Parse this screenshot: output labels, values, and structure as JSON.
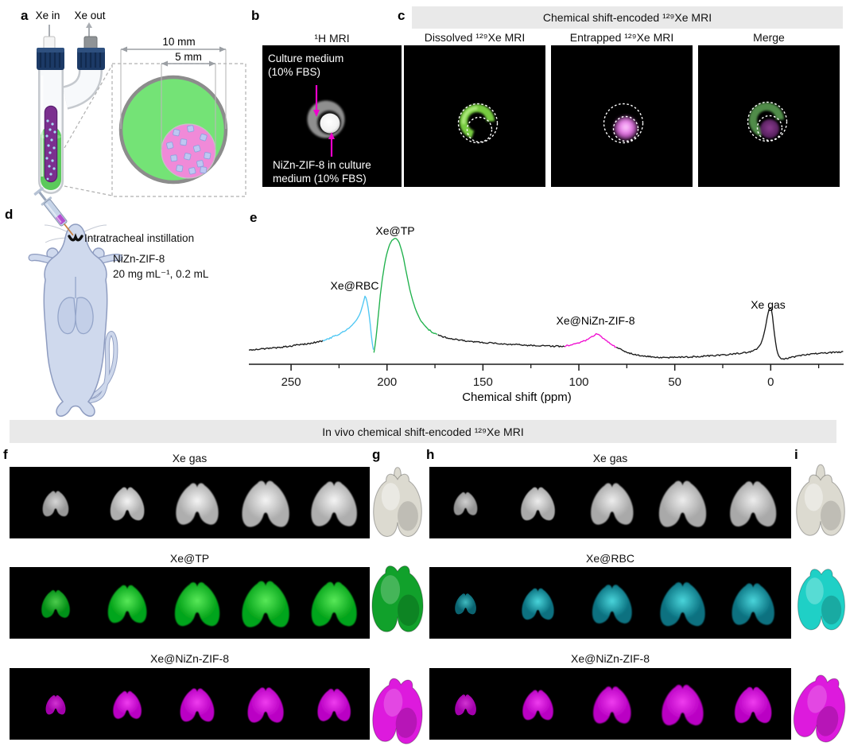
{
  "panel_a": {
    "letter": "a",
    "xe_in": "Xe in",
    "xe_out": "Xe out",
    "dim_outer": "10 mm",
    "dim_inner": "5 mm"
  },
  "panel_b": {
    "letter": "b",
    "title": "¹H MRI",
    "label_top_1": "Culture medium",
    "label_top_2": "(10% FBS)",
    "label_bottom_1": "NiZn-ZIF-8 in culture",
    "label_bottom_2": "medium (10% FBS)"
  },
  "panel_c": {
    "letter": "c",
    "header": "Chemical shift-encoded ¹²⁹Xe MRI",
    "col_1": "Dissolved ¹²⁹Xe MRI",
    "col_2": "Entrapped ¹²⁹Xe MRI",
    "col_3": "Merge"
  },
  "panel_d": {
    "letter": "d",
    "procedure": "Intratracheal instillation",
    "agent": "NiZn-ZIF-8",
    "dose": "20 mg mL⁻¹, 0.2 mL"
  },
  "panel_e": {
    "letter": "e"
  },
  "chart_data": {
    "type": "line",
    "title": "",
    "xlabel": "Chemical shift (ppm)",
    "ylabel": "",
    "x_axis_reversed": true,
    "x_range_ppm": [
      272,
      -38
    ],
    "x_major_ticks": [
      250,
      200,
      150,
      100,
      50,
      0
    ],
    "x_minor_ticks": [
      225,
      175,
      125,
      75,
      25,
      -25
    ],
    "grid": false,
    "peaks": [
      {
        "label": "Xe@RBC",
        "ppm": 211.5,
        "rel_height": 0.48,
        "color": "#4fc7f3"
      },
      {
        "label": "Xe@TP",
        "ppm": 195.5,
        "rel_height": 1.0,
        "color": "#1fb14c"
      },
      {
        "label": "Xe@NiZn-ZIF-8",
        "ppm": 91,
        "rel_height": 0.13,
        "color": "#f00fd0"
      },
      {
        "label": "Xe gas",
        "ppm": 0,
        "rel_height": 0.37,
        "color": "#1a1a1a"
      }
    ],
    "segments_ppm": [
      [
        272,
        233.5,
        "#1a1a1a"
      ],
      [
        233.5,
        206.8,
        "#4fc7f3"
      ],
      [
        206.8,
        173.5,
        "#1fb14c"
      ],
      [
        173.5,
        107.5,
        "#1a1a1a"
      ],
      [
        107.5,
        80.5,
        "#f00fd0"
      ],
      [
        80.5,
        -38,
        "#1a1a1a"
      ]
    ],
    "profile_anchors": [
      [
        272,
        -0.022
      ],
      [
        266,
        -0.015
      ],
      [
        260,
        -0.005
      ],
      [
        254,
        0.005
      ],
      [
        248,
        0.02
      ],
      [
        243,
        0.03
      ],
      [
        238,
        0.045
      ],
      [
        234,
        0.06
      ],
      [
        230,
        0.085
      ],
      [
        226,
        0.115
      ],
      [
        222,
        0.15
      ],
      [
        219,
        0.19
      ],
      [
        216,
        0.25
      ],
      [
        214,
        0.31
      ],
      [
        212.5,
        0.4
      ],
      [
        211.5,
        0.475
      ],
      [
        210.6,
        0.44
      ],
      [
        209.8,
        0.36
      ],
      [
        209,
        0.26
      ],
      [
        208.2,
        0.12
      ],
      [
        207.4,
        0.0
      ],
      [
        206.8,
        -0.042
      ],
      [
        206.2,
        0.02
      ],
      [
        205.4,
        0.14
      ],
      [
        204.5,
        0.3
      ],
      [
        203.5,
        0.48
      ],
      [
        202.5,
        0.62
      ],
      [
        201.5,
        0.74
      ],
      [
        200.5,
        0.83
      ],
      [
        199.5,
        0.9
      ],
      [
        198.5,
        0.95
      ],
      [
        197.5,
        0.982
      ],
      [
        196.5,
        0.998
      ],
      [
        195.5,
        1.0
      ],
      [
        194.5,
        0.99
      ],
      [
        193.5,
        0.955
      ],
      [
        192.5,
        0.9
      ],
      [
        191.5,
        0.83
      ],
      [
        190.5,
        0.74
      ],
      [
        189.5,
        0.65
      ],
      [
        188.5,
        0.565
      ],
      [
        187.5,
        0.49
      ],
      [
        186.5,
        0.425
      ],
      [
        185.5,
        0.37
      ],
      [
        184.5,
        0.325
      ],
      [
        183.5,
        0.285
      ],
      [
        182.5,
        0.25
      ],
      [
        181,
        0.215
      ],
      [
        179.5,
        0.185
      ],
      [
        178,
        0.16
      ],
      [
        176.5,
        0.142
      ],
      [
        175,
        0.128
      ],
      [
        173.5,
        0.115
      ],
      [
        171,
        0.1
      ],
      [
        168,
        0.088
      ],
      [
        165,
        0.077
      ],
      [
        161,
        0.067
      ],
      [
        157,
        0.058
      ],
      [
        152,
        0.05
      ],
      [
        147,
        0.042
      ],
      [
        142,
        0.036
      ],
      [
        137,
        0.03
      ],
      [
        131,
        0.025
      ],
      [
        125,
        0.02
      ],
      [
        119,
        0.016
      ],
      [
        113,
        0.012
      ],
      [
        108,
        0.012
      ],
      [
        105,
        0.02
      ],
      [
        102,
        0.032
      ],
      [
        99,
        0.048
      ],
      [
        96.5,
        0.065
      ],
      [
        94.5,
        0.085
      ],
      [
        93,
        0.1
      ],
      [
        91.5,
        0.118
      ],
      [
        90.5,
        0.128
      ],
      [
        89.5,
        0.118
      ],
      [
        88,
        0.098
      ],
      [
        86.5,
        0.075
      ],
      [
        85,
        0.052
      ],
      [
        83,
        0.028
      ],
      [
        81,
        0.006
      ],
      [
        79,
        -0.012
      ],
      [
        76,
        -0.035
      ],
      [
        73,
        -0.055
      ],
      [
        70,
        -0.068
      ],
      [
        66,
        -0.078
      ],
      [
        62,
        -0.085
      ],
      [
        58,
        -0.09
      ],
      [
        54,
        -0.092
      ],
      [
        50,
        -0.09
      ],
      [
        46,
        -0.088
      ],
      [
        42,
        -0.086
      ],
      [
        38,
        -0.082
      ],
      [
        34,
        -0.078
      ],
      [
        30,
        -0.074
      ],
      [
        26,
        -0.07
      ],
      [
        22,
        -0.064
      ],
      [
        18,
        -0.057
      ],
      [
        14,
        -0.048
      ],
      [
        11,
        -0.04
      ],
      [
        9,
        -0.03
      ],
      [
        7.5,
        -0.015
      ],
      [
        6,
        0.01
      ],
      [
        5,
        0.04
      ],
      [
        4,
        0.09
      ],
      [
        3.2,
        0.15
      ],
      [
        2.5,
        0.21
      ],
      [
        1.8,
        0.28
      ],
      [
        1.2,
        0.33
      ],
      [
        0.6,
        0.362
      ],
      [
        0.1,
        0.37
      ],
      [
        -0.4,
        0.345
      ],
      [
        -0.9,
        0.29
      ],
      [
        -1.4,
        0.21
      ],
      [
        -2,
        0.12
      ],
      [
        -2.6,
        0.04
      ],
      [
        -3.2,
        -0.025
      ],
      [
        -4,
        -0.07
      ],
      [
        -5,
        -0.095
      ],
      [
        -6.5,
        -0.105
      ],
      [
        -8,
        -0.1
      ],
      [
        -10,
        -0.092
      ],
      [
        -13,
        -0.082
      ],
      [
        -16,
        -0.072
      ],
      [
        -20,
        -0.062
      ],
      [
        -24,
        -0.055
      ],
      [
        -28,
        -0.05
      ],
      [
        -32,
        -0.045
      ],
      [
        -36,
        -0.04
      ],
      [
        -38,
        -0.038
      ]
    ]
  },
  "invivo": {
    "header": "In vivo chemical shift-encoded ¹²⁹Xe MRI",
    "f": {
      "letter": "f",
      "rows": [
        {
          "label": "Xe gas",
          "base": "#aeaeae",
          "hi": "#f4f4f4",
          "sizes": [
            0.55,
            0.72,
            0.9,
            1.0,
            0.97
          ]
        },
        {
          "label": "Xe@TP",
          "base": "#06a51b",
          "hi": "#58e858",
          "sizes": [
            0.6,
            0.82,
            0.95,
            1.0,
            0.96
          ]
        },
        {
          "label": "Xe@NiZn-ZIF-8",
          "base": "#ba00c4",
          "hi": "#ee3cee",
          "sizes": [
            0.42,
            0.6,
            0.72,
            0.76,
            0.7
          ]
        }
      ]
    },
    "g": {
      "letter": "g",
      "renders": [
        {
          "name": "Xe gas",
          "fill": "#dcdad0"
        },
        {
          "name": "Xe@TP",
          "fill": "#11a12b"
        },
        {
          "name": "Xe@NiZn-ZIF-8",
          "fill": "#dd1add"
        }
      ]
    },
    "h": {
      "letter": "h",
      "rows": [
        {
          "label": "Xe gas",
          "base": "#a9a9a9",
          "hi": "#ededed",
          "sizes": [
            0.5,
            0.72,
            0.9,
            1.0,
            0.98
          ]
        },
        {
          "label": "Xe@RBC",
          "base": "#0a7180",
          "hi": "#49d4da",
          "sizes": [
            0.45,
            0.68,
            0.84,
            0.95,
            0.9
          ]
        },
        {
          "label": "Xe@NiZn-ZIF-8",
          "base": "#ba00c4",
          "hi": "#ee3cee",
          "sizes": [
            0.45,
            0.65,
            0.8,
            0.88,
            0.78
          ]
        }
      ]
    },
    "i": {
      "letter": "i",
      "renders": [
        {
          "name": "Xe gas",
          "fill": "#dcdad0"
        },
        {
          "name": "Xe@RBC",
          "fill": "#1fd0c6"
        },
        {
          "name": "Xe@NiZn-ZIF-8",
          "fill": "#dd1add"
        }
      ]
    }
  },
  "colors": {
    "annotation_magenta": "#ee00cc",
    "mri_dissolved_green": "#77cc41",
    "mri_entrapped_magenta": "#ee8cee",
    "mri_merge_green": "#55944d",
    "mri_merge_purple": "#6b2a70",
    "header_bar_gray": "#e9e9e9"
  }
}
